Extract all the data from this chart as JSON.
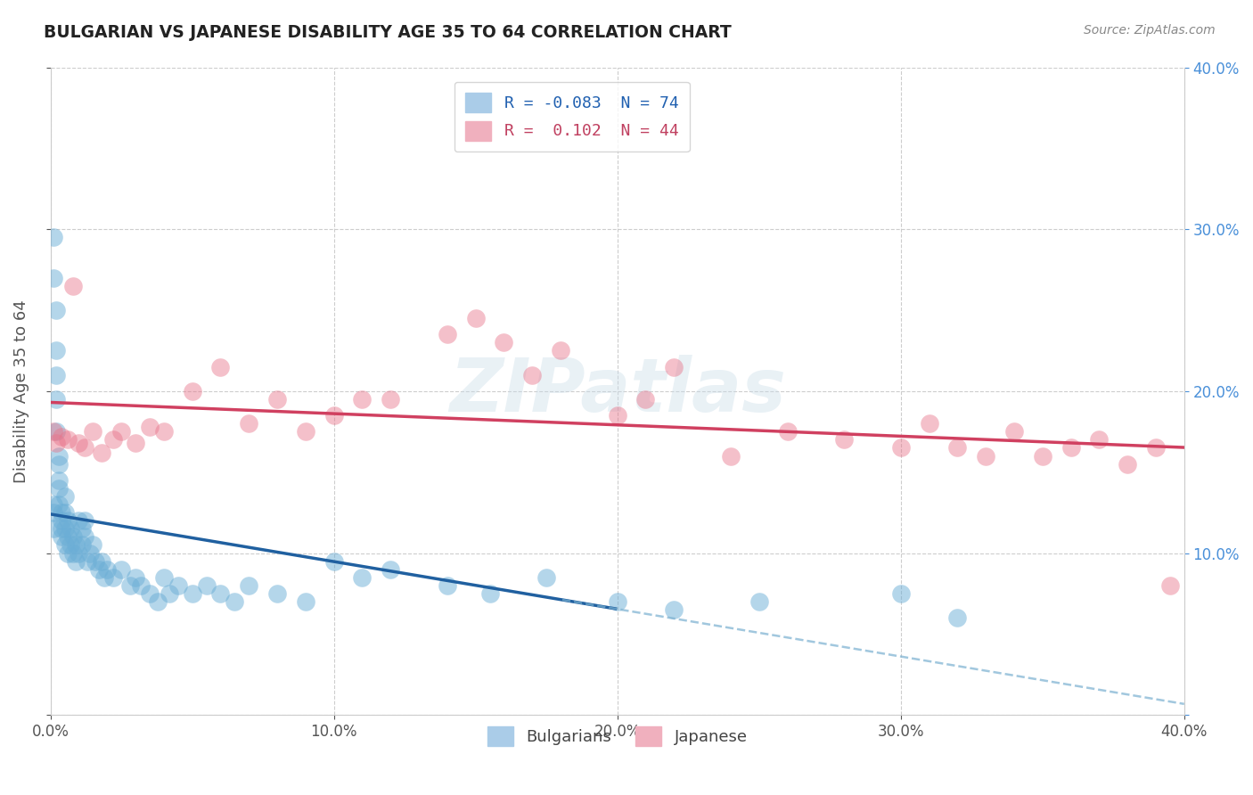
{
  "title": "BULGARIAN VS JAPANESE DISABILITY AGE 35 TO 64 CORRELATION CHART",
  "source": "Source: ZipAtlas.com",
  "ylabel_label": "Disability Age 35 to 64",
  "xlim": [
    0.0,
    0.4
  ],
  "ylim": [
    0.0,
    0.4
  ],
  "xticks": [
    0.0,
    0.1,
    0.2,
    0.3,
    0.4
  ],
  "yticks": [
    0.0,
    0.1,
    0.2,
    0.3,
    0.4
  ],
  "blue_scatter_color": "#6baed6",
  "pink_scatter_color": "#e8748a",
  "blue_line_color": "#2060a0",
  "pink_line_color": "#d04060",
  "blue_dash_color": "#7ab0d0",
  "watermark_text": "ZIPatlas",
  "bg_color": "#ffffff",
  "grid_color": "#c8c8c8",
  "right_axis_color": "#4a90d9",
  "bulgarians_x": [
    0.001,
    0.001,
    0.001,
    0.001,
    0.001,
    0.002,
    0.002,
    0.002,
    0.002,
    0.002,
    0.003,
    0.003,
    0.003,
    0.003,
    0.003,
    0.004,
    0.004,
    0.004,
    0.004,
    0.005,
    0.005,
    0.005,
    0.005,
    0.006,
    0.006,
    0.006,
    0.007,
    0.007,
    0.008,
    0.008,
    0.009,
    0.009,
    0.01,
    0.01,
    0.011,
    0.011,
    0.012,
    0.012,
    0.013,
    0.014,
    0.015,
    0.016,
    0.017,
    0.018,
    0.019,
    0.02,
    0.022,
    0.025,
    0.028,
    0.03,
    0.032,
    0.035,
    0.038,
    0.04,
    0.042,
    0.045,
    0.05,
    0.055,
    0.06,
    0.065,
    0.07,
    0.08,
    0.09,
    0.1,
    0.11,
    0.12,
    0.14,
    0.155,
    0.175,
    0.2,
    0.22,
    0.25,
    0.3,
    0.32
  ],
  "bulgarians_y": [
    0.295,
    0.27,
    0.13,
    0.125,
    0.115,
    0.25,
    0.225,
    0.21,
    0.195,
    0.175,
    0.16,
    0.155,
    0.145,
    0.14,
    0.13,
    0.125,
    0.12,
    0.115,
    0.11,
    0.135,
    0.125,
    0.115,
    0.105,
    0.12,
    0.11,
    0.1,
    0.115,
    0.105,
    0.11,
    0.1,
    0.105,
    0.095,
    0.12,
    0.1,
    0.115,
    0.105,
    0.12,
    0.11,
    0.095,
    0.1,
    0.105,
    0.095,
    0.09,
    0.095,
    0.085,
    0.09,
    0.085,
    0.09,
    0.08,
    0.085,
    0.08,
    0.075,
    0.07,
    0.085,
    0.075,
    0.08,
    0.075,
    0.08,
    0.075,
    0.07,
    0.08,
    0.075,
    0.07,
    0.095,
    0.085,
    0.09,
    0.08,
    0.075,
    0.085,
    0.07,
    0.065,
    0.07,
    0.075,
    0.06
  ],
  "japanese_x": [
    0.001,
    0.002,
    0.004,
    0.006,
    0.008,
    0.01,
    0.012,
    0.015,
    0.018,
    0.022,
    0.025,
    0.03,
    0.035,
    0.04,
    0.05,
    0.06,
    0.07,
    0.08,
    0.09,
    0.1,
    0.11,
    0.12,
    0.14,
    0.15,
    0.16,
    0.17,
    0.18,
    0.2,
    0.21,
    0.22,
    0.24,
    0.26,
    0.28,
    0.3,
    0.31,
    0.32,
    0.33,
    0.34,
    0.35,
    0.36,
    0.37,
    0.38,
    0.39,
    0.395
  ],
  "japanese_y": [
    0.175,
    0.168,
    0.172,
    0.17,
    0.265,
    0.168,
    0.165,
    0.175,
    0.162,
    0.17,
    0.175,
    0.168,
    0.178,
    0.175,
    0.2,
    0.215,
    0.18,
    0.195,
    0.175,
    0.185,
    0.195,
    0.195,
    0.235,
    0.245,
    0.23,
    0.21,
    0.225,
    0.185,
    0.195,
    0.215,
    0.16,
    0.175,
    0.17,
    0.165,
    0.18,
    0.165,
    0.16,
    0.175,
    0.16,
    0.165,
    0.17,
    0.155,
    0.165,
    0.08
  ]
}
